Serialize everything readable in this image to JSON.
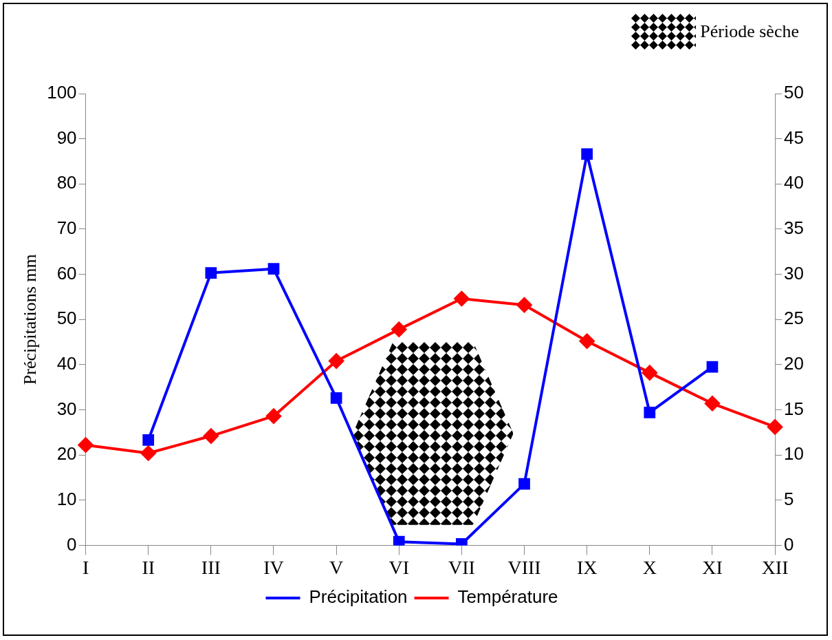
{
  "chart_data": {
    "type": "line",
    "categories": [
      "I",
      "II",
      "III",
      "IV",
      "V",
      "VI",
      "VII",
      "VIII",
      "IX",
      "X",
      "XI",
      "XII"
    ],
    "series": [
      {
        "name": "Précipitation",
        "color": "#0000ff",
        "marker": "square",
        "values": [
          null,
          23.3,
          60.3,
          61.2,
          32.6,
          0.8,
          0.3,
          13.6,
          86.6,
          29.4,
          39.5,
          null
        ]
      },
      {
        "name": "Température",
        "color": "#ff0000",
        "marker": "diamond",
        "axis": "y2",
        "values": [
          11.1,
          10.2,
          12.1,
          14.3,
          20.4,
          23.9,
          27.3,
          26.6,
          22.6,
          19.1,
          15.7,
          13.1
        ]
      }
    ],
    "ylabel": "Précipitations mm",
    "ylim": [
      0,
      100
    ],
    "yticks": [
      0,
      10,
      20,
      30,
      40,
      50,
      60,
      70,
      80,
      90,
      100
    ],
    "y2lim": [
      0,
      50
    ],
    "y2ticks": [
      0,
      5,
      10,
      15,
      20,
      25,
      30,
      35,
      40,
      45,
      50
    ],
    "annotations": [
      "Période sèche"
    ],
    "grid": false,
    "legend": "bottom",
    "line_style": "solid"
  }
}
